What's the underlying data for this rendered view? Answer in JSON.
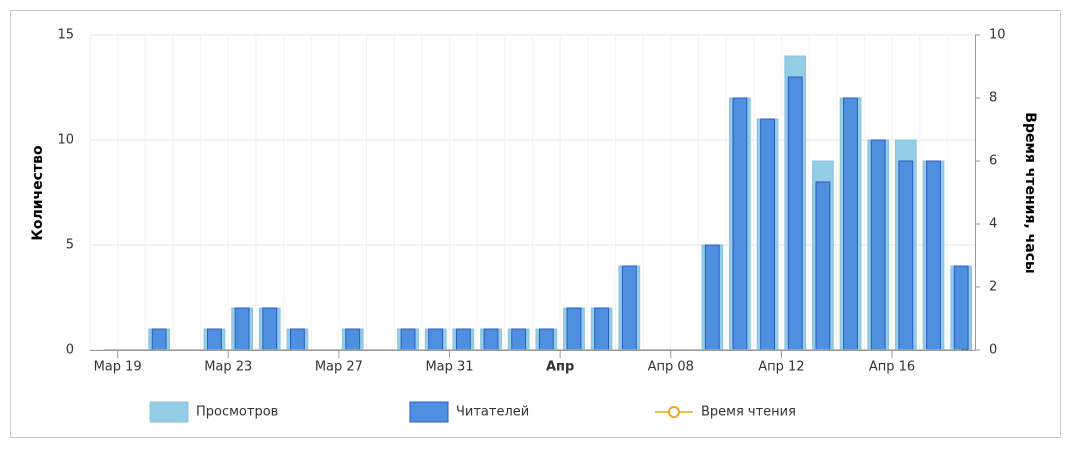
{
  "chart_data": {
    "type": "bar",
    "y_label": "Количество",
    "y2_label": "Время чтения, часы",
    "categories": [
      null,
      "Мар 19",
      null,
      null,
      null,
      "Мар 23",
      null,
      null,
      null,
      "Мар 27",
      null,
      null,
      null,
      "Мар 31",
      null,
      null,
      null,
      "Апр",
      null,
      null,
      null,
      "Апр 08",
      null,
      null,
      null,
      "Апр 12",
      null,
      null,
      null,
      "Апр 16",
      null,
      null
    ],
    "series": [
      {
        "name": "Просмотров",
        "color": "#93cde6",
        "values": [
          0,
          0,
          1,
          0,
          1,
          2,
          2,
          1,
          0,
          1,
          0,
          1,
          1,
          1,
          1,
          1,
          1,
          2,
          2,
          4,
          0,
          0,
          5,
          12,
          11,
          14,
          9,
          12,
          10,
          10,
          9,
          4
        ]
      },
      {
        "name": "Читателей",
        "color": "#4f8fe0",
        "values": [
          0,
          0,
          1,
          0,
          1,
          2,
          2,
          1,
          0,
          1,
          0,
          1,
          1,
          1,
          1,
          1,
          1,
          2,
          2,
          4,
          0,
          0,
          5,
          12,
          11,
          13,
          8,
          12,
          10,
          9,
          9,
          4
        ]
      },
      {
        "name": "Время чтения",
        "color": "#f5a623",
        "type": "line",
        "axis": "y2",
        "values": [
          0,
          0,
          0,
          0,
          0,
          0,
          0,
          0,
          0,
          0,
          0,
          0,
          0,
          0,
          0,
          0,
          0,
          0,
          0,
          0,
          0,
          0,
          0,
          0,
          0,
          0,
          0,
          0,
          0,
          0,
          0,
          0
        ]
      }
    ],
    "ylim": [
      0,
      15
    ],
    "yticks": [
      0,
      5,
      10,
      15
    ],
    "y2lim": [
      0,
      10
    ],
    "y2ticks": [
      0,
      2,
      4,
      6,
      8,
      10
    ],
    "grid": true
  }
}
